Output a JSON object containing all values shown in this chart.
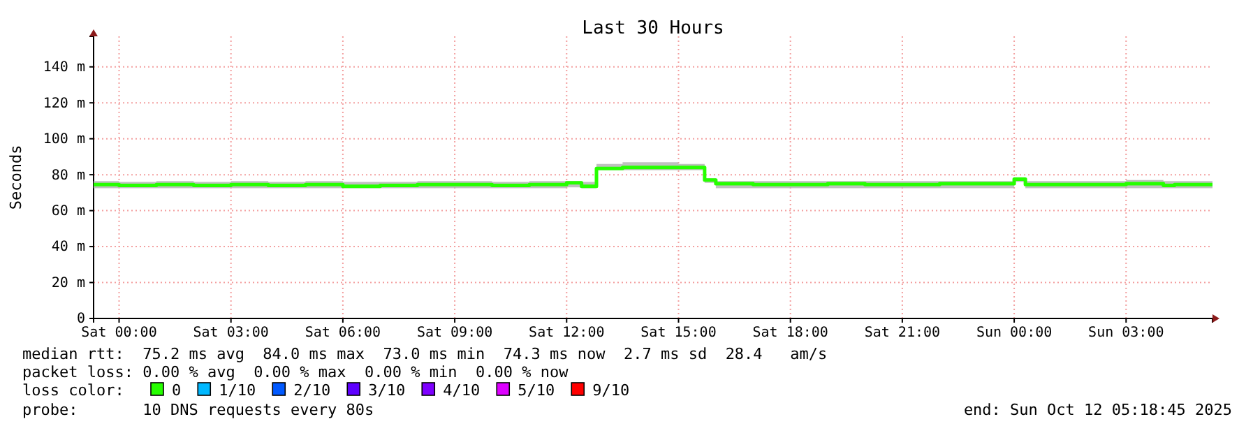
{
  "chart_data": {
    "type": "step",
    "title": "Last 30 Hours",
    "ylabel": "Seconds",
    "legend_title": "loss color:",
    "legend": "bottom",
    "grid": true,
    "marker": "none",
    "line_style": "solid",
    "xlim": [
      "2025-10-10T23:19",
      "2025-10-12T05:19"
    ],
    "xticks": [
      {
        "value": "2025-10-11T00:00",
        "label": "Sat 00:00"
      },
      {
        "value": "2025-10-11T03:00",
        "label": "Sat 03:00"
      },
      {
        "value": "2025-10-11T06:00",
        "label": "Sat 06:00"
      },
      {
        "value": "2025-10-11T09:00",
        "label": "Sat 09:00"
      },
      {
        "value": "2025-10-11T12:00",
        "label": "Sat 12:00"
      },
      {
        "value": "2025-10-11T15:00",
        "label": "Sat 15:00"
      },
      {
        "value": "2025-10-11T18:00",
        "label": "Sat 18:00"
      },
      {
        "value": "2025-10-11T21:00",
        "label": "Sat 21:00"
      },
      {
        "value": "2025-10-12T00:00",
        "label": "Sun 00:00"
      },
      {
        "value": "2025-10-12T03:00",
        "label": "Sun 03:00"
      }
    ],
    "ylim": [
      0,
      157
    ],
    "yticks": [
      0,
      {
        "value": 20,
        "label": "20 m"
      },
      {
        "value": 40,
        "label": "40 m"
      },
      {
        "value": 60,
        "label": "60 m"
      },
      {
        "value": 80,
        "label": "80 m"
      },
      {
        "value": 100,
        "label": "100 m"
      },
      {
        "value": 120,
        "label": "120 m"
      },
      {
        "value": 140,
        "label": "140 m"
      }
    ],
    "x": [
      "2025-10-10T23:19",
      "2025-10-11T00:00",
      "2025-10-11T01:00",
      "2025-10-11T02:00",
      "2025-10-11T03:00",
      "2025-10-11T04:00",
      "2025-10-11T05:00",
      "2025-10-11T06:00",
      "2025-10-11T07:00",
      "2025-10-11T08:00",
      "2025-10-11T09:00",
      "2025-10-11T10:00",
      "2025-10-11T11:00",
      "2025-10-11T12:00",
      "2025-10-11T12:24",
      "2025-10-11T12:48",
      "2025-10-11T13:30",
      "2025-10-11T15:00",
      "2025-10-11T15:42",
      "2025-10-11T16:00",
      "2025-10-11T17:00",
      "2025-10-11T18:00",
      "2025-10-11T19:00",
      "2025-10-11T20:00",
      "2025-10-11T21:00",
      "2025-10-11T22:00",
      "2025-10-11T23:00",
      "2025-10-12T00:00",
      "2025-10-12T00:18",
      "2025-10-12T01:00",
      "2025-10-12T02:00",
      "2025-10-12T03:00",
      "2025-10-12T04:00",
      "2025-10-12T04:18",
      "2025-10-12T05:19"
    ],
    "series": [
      {
        "name": "0",
        "color": "#26ff00",
        "values": [
          74.5,
          74,
          74.5,
          74,
          74.5,
          74,
          74.5,
          73.5,
          74,
          74.5,
          74.5,
          74,
          74.5,
          75.5,
          73.5,
          83.5,
          84,
          84,
          77,
          75,
          74.5,
          74.5,
          75,
          74.5,
          74.5,
          75,
          75,
          77.5,
          74.5,
          74.5,
          74.5,
          75,
          74,
          74.5,
          74.5
        ],
        "lower": [
          72.5,
          72.5,
          72.5,
          72.5,
          72.5,
          72.5,
          72.5,
          72.5,
          72.5,
          72.5,
          72.5,
          72.5,
          72.5,
          73,
          72.5,
          82.5,
          82.5,
          82.5,
          75.5,
          72.5,
          72.5,
          72.5,
          72.5,
          72.5,
          72.5,
          72.5,
          72.5,
          76,
          72.5,
          72.5,
          72.5,
          72.5,
          72.5,
          72.5,
          72.5
        ],
        "upper": [
          76.5,
          76,
          76.5,
          76,
          76.5,
          76,
          76.5,
          76,
          76,
          76.5,
          76.5,
          76,
          76.5,
          76.5,
          76,
          86,
          87,
          86,
          78,
          76.5,
          76.5,
          76.5,
          76.5,
          76.5,
          76.5,
          76.5,
          76.5,
          78.5,
          76.5,
          76.5,
          76.5,
          77,
          76.5,
          76.5,
          76.5
        ]
      },
      {
        "name": "1/10",
        "color": "#00b8ff",
        "values": [
          null,
          null,
          null,
          null,
          null,
          null,
          null,
          null,
          null,
          null,
          null,
          null,
          null,
          null,
          null,
          null,
          null,
          null,
          null,
          null,
          null,
          null,
          null,
          null,
          null,
          null,
          null,
          null,
          null,
          null,
          null,
          null,
          null,
          null,
          null
        ]
      },
      {
        "name": "2/10",
        "color": "#0059ff",
        "values": [
          null,
          null,
          null,
          null,
          null,
          null,
          null,
          null,
          null,
          null,
          null,
          null,
          null,
          null,
          null,
          null,
          null,
          null,
          null,
          null,
          null,
          null,
          null,
          null,
          null,
          null,
          null,
          null,
          null,
          null,
          null,
          null,
          null,
          null,
          null
        ]
      },
      {
        "name": "3/10",
        "color": "#5e00ff",
        "values": [
          null,
          null,
          null,
          null,
          null,
          null,
          null,
          null,
          null,
          null,
          null,
          null,
          null,
          null,
          null,
          null,
          null,
          null,
          null,
          null,
          null,
          null,
          null,
          null,
          null,
          null,
          null,
          null,
          null,
          null,
          null,
          null,
          null,
          null,
          null
        ]
      },
      {
        "name": "4/10",
        "color": "#7e00ff",
        "values": [
          null,
          null,
          null,
          null,
          null,
          null,
          null,
          null,
          null,
          null,
          null,
          null,
          null,
          null,
          null,
          null,
          null,
          null,
          null,
          null,
          null,
          null,
          null,
          null,
          null,
          null,
          null,
          null,
          null,
          null,
          null,
          null,
          null,
          null,
          null
        ]
      },
      {
        "name": "5/10",
        "color": "#dd00ff",
        "values": [
          null,
          null,
          null,
          null,
          null,
          null,
          null,
          null,
          null,
          null,
          null,
          null,
          null,
          null,
          null,
          null,
          null,
          null,
          null,
          null,
          null,
          null,
          null,
          null,
          null,
          null,
          null,
          null,
          null,
          null,
          null,
          null,
          null,
          null,
          null
        ]
      },
      {
        "name": "9/10",
        "color": "#ff0000",
        "values": [
          null,
          null,
          null,
          null,
          null,
          null,
          null,
          null,
          null,
          null,
          null,
          null,
          null,
          null,
          null,
          null,
          null,
          null,
          null,
          null,
          null,
          null,
          null,
          null,
          null,
          null,
          null,
          null,
          null,
          null,
          null,
          null,
          null,
          null,
          null
        ]
      }
    ],
    "annotations": [
      "median rtt:  75.2 ms avg  84.0 ms max  73.0 ms min  74.3 ms now  2.7 ms sd  28.4   am/s",
      "packet loss: 0.00 % avg  0.00 % max  0.00 % min  0.00 % now",
      "probe:       10 DNS requests every 80s",
      "end: Sun Oct 12 05:18:45 2025"
    ]
  }
}
